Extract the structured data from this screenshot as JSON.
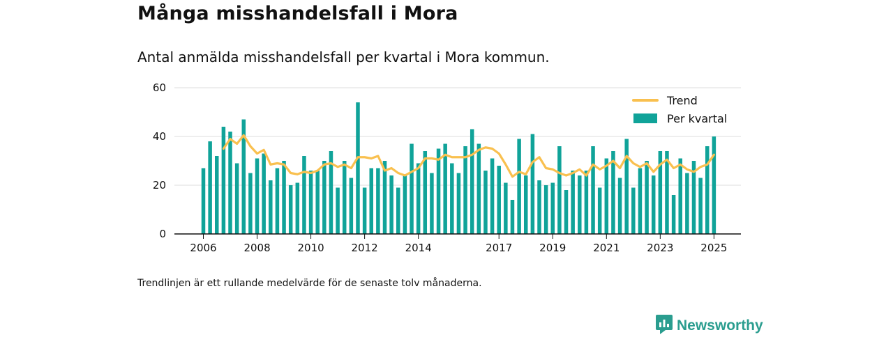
{
  "title": "Många misshandelsfall i Mora",
  "subtitle": "Antal anmälda misshandelsfall per kvartal i Mora kommun.",
  "footnote": "Trendlinjen är ett rullande medelvärde för de senaste tolv månaderna.",
  "brand": {
    "name": "Newsworthy",
    "icon": "newsworthy-logo-icon"
  },
  "colors": {
    "bars": "#10a399",
    "trend": "#f9c04f",
    "grid": "#dddddd",
    "axis": "#111111",
    "brand": "#2a9d8f"
  },
  "chart_data": {
    "type": "bar",
    "x_start": "2006 Q1",
    "xtick_labels": [
      "2006",
      "2008",
      "2010",
      "2012",
      "2014",
      "2017",
      "2019",
      "2021",
      "2023",
      "2025"
    ],
    "ylim": [
      0,
      60
    ],
    "yticks": [
      0,
      20,
      40,
      60
    ],
    "grid": true,
    "legend_position": "top-right",
    "series": [
      {
        "name": "Per kvartal",
        "kind": "bar",
        "values": [
          27,
          38,
          32,
          44,
          42,
          29,
          47,
          25,
          31,
          33,
          22,
          27,
          30,
          20,
          21,
          32,
          26,
          26,
          30,
          34,
          19,
          30,
          23,
          54,
          19,
          27,
          27,
          30,
          24,
          19,
          24,
          37,
          29,
          34,
          25,
          35,
          37,
          29,
          25,
          36,
          43,
          37,
          26,
          31,
          28,
          21,
          14,
          39,
          24,
          41,
          22,
          20,
          21,
          36,
          18,
          26,
          24,
          26,
          36,
          19,
          31,
          34,
          23,
          39,
          19,
          27,
          30,
          24,
          34,
          34,
          16,
          31,
          25,
          30,
          23,
          36,
          40
        ]
      },
      {
        "name": "Trend",
        "kind": "line",
        "values": [
          null,
          null,
          null,
          35,
          39,
          37,
          40.5,
          36,
          33,
          34.5,
          28.5,
          29,
          28.5,
          25,
          24.5,
          25.5,
          25,
          26,
          28.5,
          29,
          27.5,
          28.5,
          27,
          31.5,
          31.5,
          31,
          32,
          26,
          27,
          25,
          24,
          25.5,
          27,
          31,
          31,
          30.5,
          32.5,
          31.5,
          31.5,
          31.5,
          32.5,
          34.5,
          35.5,
          35,
          33,
          28.5,
          23.5,
          25.5,
          24.5,
          29.5,
          31.5,
          27,
          26.5,
          25,
          24,
          25,
          26.5,
          24,
          28.5,
          26.5,
          28,
          30,
          27,
          32,
          29,
          27.5,
          29,
          25.5,
          28.5,
          30.5,
          27,
          28.5,
          26.5,
          25.5,
          27.5,
          28.5,
          32.5
        ]
      }
    ]
  }
}
